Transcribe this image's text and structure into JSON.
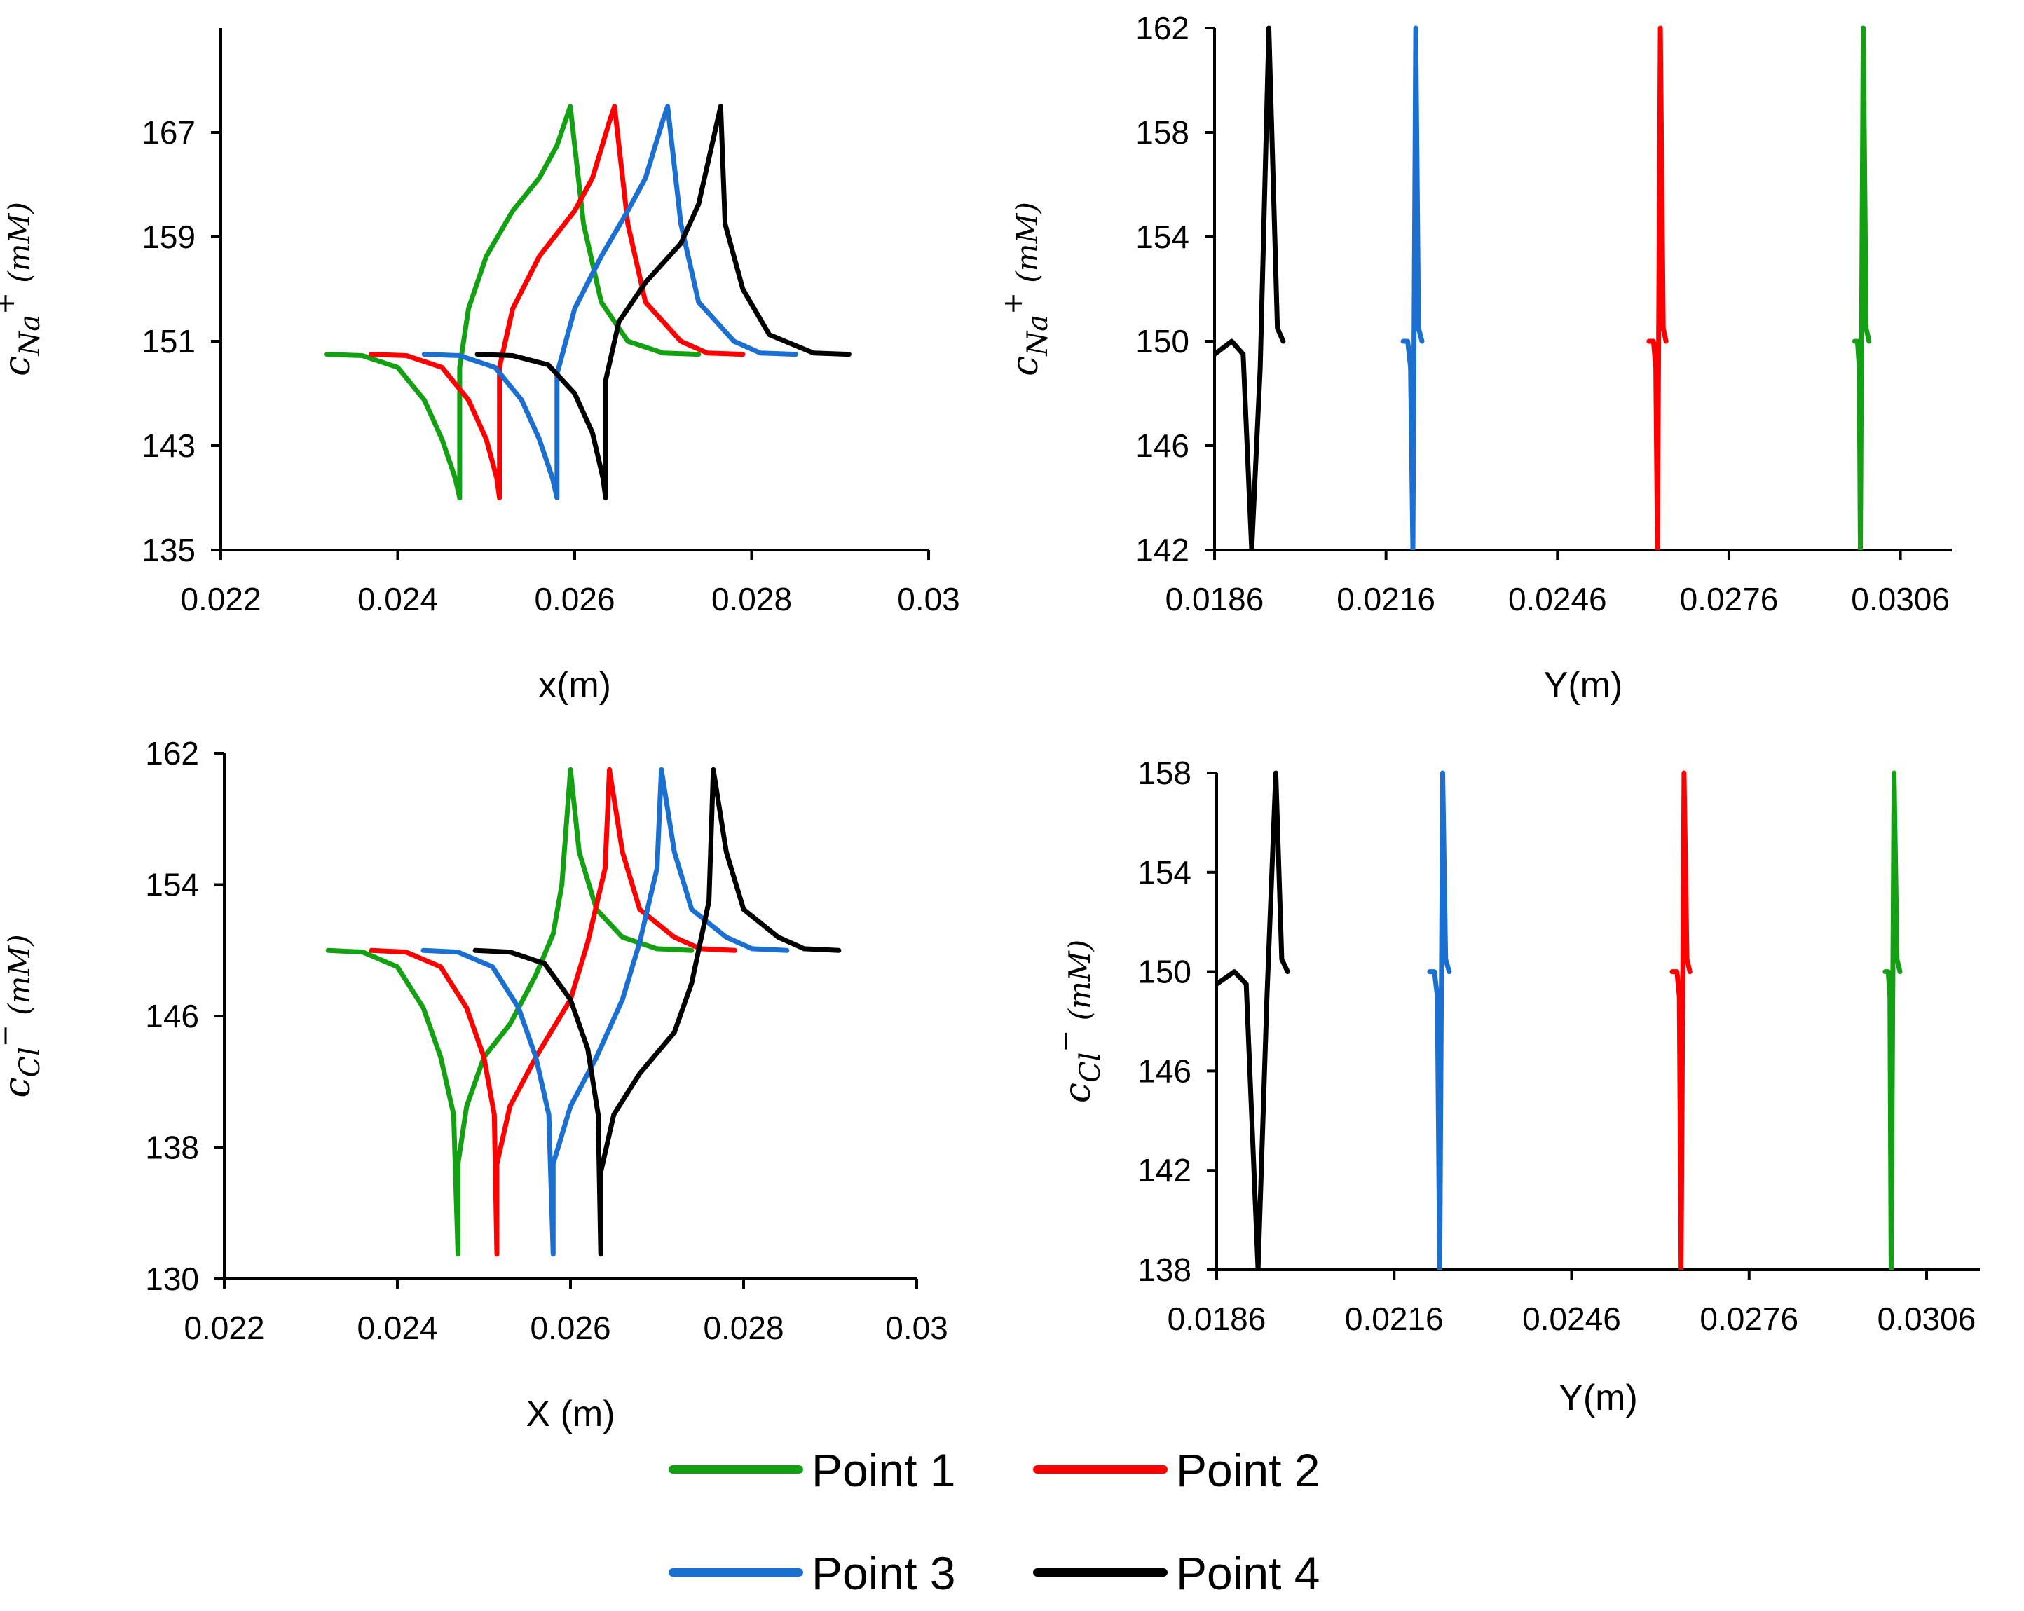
{
  "chart_data": [
    {
      "type": "line",
      "id": "a",
      "title": "",
      "xlabel": "x(m)",
      "ylabel_main": "c",
      "ylabel_sub": "Na",
      "ylabel_sup": "+",
      "ylabel_unit": " (mM)",
      "xlim": [
        0.022,
        0.03
      ],
      "ylim": [
        135,
        175
      ],
      "xticks": [
        0.022,
        0.024,
        0.026,
        0.028,
        0.03
      ],
      "xtick_labels": [
        "0.022",
        "0.024",
        "0.026",
        "0.028",
        "0.03"
      ],
      "yticks": [
        135,
        143,
        151,
        159,
        167
      ],
      "ytick_labels": [
        "135",
        "143",
        "151",
        "159",
        "167"
      ],
      "series": [
        {
          "name": "Point 1",
          "x": [
            0.0232,
            0.0236,
            0.024,
            0.0243,
            0.0245,
            0.02465,
            0.0247,
            0.0247,
            0.0248,
            0.025,
            0.0253,
            0.0256,
            0.0258,
            0.0259,
            0.02595,
            0.0261,
            0.0263,
            0.0266,
            0.027,
            0.0274
          ],
          "y": [
            150,
            149.9,
            149,
            146.5,
            143.5,
            140.5,
            139,
            149,
            153.5,
            157.5,
            161,
            163.5,
            166,
            168,
            169,
            160,
            154,
            151,
            150.1,
            150
          ]
        },
        {
          "name": "Point 2",
          "x": [
            0.0237,
            0.0241,
            0.0245,
            0.0248,
            0.025,
            0.02512,
            0.02515,
            0.02515,
            0.0253,
            0.0256,
            0.026,
            0.0262,
            0.0264,
            0.02645,
            0.0266,
            0.0268,
            0.0272,
            0.0275,
            0.0279
          ],
          "y": [
            150,
            149.9,
            149,
            146.5,
            143.5,
            140.5,
            139,
            149,
            153.5,
            157.5,
            161,
            163.5,
            168,
            169,
            160,
            154,
            151,
            150.1,
            150
          ]
        },
        {
          "name": "Point 3",
          "x": [
            0.0243,
            0.0247,
            0.0251,
            0.0254,
            0.0256,
            0.02575,
            0.0258,
            0.0258,
            0.026,
            0.0263,
            0.0266,
            0.0268,
            0.027,
            0.02705,
            0.0272,
            0.0274,
            0.0278,
            0.0281,
            0.0285
          ],
          "y": [
            150,
            149.9,
            149,
            146.5,
            143.5,
            140.5,
            139,
            148.5,
            153.5,
            157.5,
            161,
            163.5,
            168,
            169,
            160,
            154,
            151,
            150.1,
            150
          ]
        },
        {
          "name": "Point 4",
          "x": [
            0.0249,
            0.0253,
            0.0257,
            0.026,
            0.0262,
            0.02632,
            0.02635,
            0.02635,
            0.0265,
            0.0268,
            0.0272,
            0.0274,
            0.02755,
            0.02765,
            0.0277,
            0.0279,
            0.0282,
            0.0287,
            0.0291
          ],
          "y": [
            150,
            149.9,
            149.2,
            147,
            144,
            140.5,
            139,
            148,
            152.5,
            155.5,
            158.5,
            161.5,
            166,
            169,
            160,
            155,
            151.5,
            150.1,
            150
          ]
        }
      ]
    },
    {
      "type": "line",
      "id": "b",
      "title": "",
      "xlabel": "Y(m)",
      "ylabel_main": "c",
      "ylabel_sub": "Na",
      "ylabel_sup": "+",
      "ylabel_unit": " (mM)",
      "xlim": [
        0.0186,
        0.0315
      ],
      "ylim": [
        142,
        162
      ],
      "xticks": [
        0.0186,
        0.0216,
        0.0246,
        0.0276,
        0.0306
      ],
      "xtick_labels": [
        "0.0186",
        "0.0216",
        "0.0246",
        "0.0276",
        "0.0306"
      ],
      "yticks": [
        142,
        146,
        150,
        154,
        158,
        162
      ],
      "ytick_labels": [
        "142",
        "146",
        "150",
        "154",
        "158",
        "162"
      ],
      "series": [
        {
          "name": "Point 1",
          "x": [
            0.0298,
            0.02985,
            0.02988,
            0.0299,
            0.02995,
            0.03,
            0.03005
          ],
          "y": [
            150,
            150,
            149,
            142,
            162,
            150.5,
            150
          ]
        },
        {
          "name": "Point 2",
          "x": [
            0.0262,
            0.02628,
            0.02632,
            0.02635,
            0.0264,
            0.02645,
            0.0265
          ],
          "y": [
            150,
            150,
            149,
            142,
            162,
            150.5,
            150
          ]
        },
        {
          "name": "Point 3",
          "x": [
            0.0219,
            0.02198,
            0.02203,
            0.02207,
            0.02212,
            0.02217,
            0.02223
          ],
          "y": [
            150,
            150,
            149,
            142,
            162,
            150.5,
            150
          ]
        },
        {
          "name": "Point 4",
          "x": [
            0.0186,
            0.0189,
            0.0191,
            0.01925,
            0.0194,
            0.01955,
            0.0197,
            0.0198
          ],
          "y": [
            149.5,
            150,
            149.5,
            142,
            149,
            162,
            150.5,
            150
          ]
        }
      ]
    },
    {
      "type": "line",
      "id": "c",
      "title": "",
      "xlabel": "X (m)",
      "ylabel_main": "c",
      "ylabel_sub": "Cl",
      "ylabel_sup": "−",
      "ylabel_unit": " (mM)",
      "xlim": [
        0.022,
        0.03
      ],
      "ylim": [
        130,
        162
      ],
      "xticks": [
        0.022,
        0.024,
        0.026,
        0.028,
        0.03
      ],
      "xtick_labels": [
        "0.022",
        "0.024",
        "0.026",
        "0.028",
        "0.03"
      ],
      "yticks": [
        130,
        138,
        146,
        154,
        162
      ],
      "ytick_labels": [
        "130",
        "138",
        "146",
        "154",
        "162"
      ],
      "series": [
        {
          "name": "Point 1",
          "x": [
            0.0232,
            0.0236,
            0.024,
            0.0243,
            0.0245,
            0.02465,
            0.0247,
            0.0247,
            0.0248,
            0.025,
            0.0253,
            0.0256,
            0.0258,
            0.0259,
            0.026,
            0.0261,
            0.0263,
            0.0266,
            0.027,
            0.0274
          ],
          "y": [
            150,
            149.9,
            149,
            146.5,
            143.5,
            140,
            131.5,
            137,
            140.5,
            143.5,
            145.5,
            148.5,
            151,
            154,
            161,
            156,
            152.5,
            150.8,
            150.1,
            150
          ]
        },
        {
          "name": "Point 2",
          "x": [
            0.0237,
            0.0241,
            0.0245,
            0.0248,
            0.025,
            0.02512,
            0.02515,
            0.02515,
            0.0253,
            0.0256,
            0.026,
            0.0262,
            0.0264,
            0.02645,
            0.0266,
            0.0268,
            0.0272,
            0.0275,
            0.0279
          ],
          "y": [
            150,
            149.9,
            149,
            146.5,
            143.5,
            140,
            131.5,
            137,
            140.5,
            143.5,
            147,
            150.5,
            155,
            161,
            156,
            152.5,
            150.8,
            150.1,
            150
          ]
        },
        {
          "name": "Point 3",
          "x": [
            0.0243,
            0.0247,
            0.0251,
            0.0254,
            0.0256,
            0.02575,
            0.0258,
            0.0258,
            0.026,
            0.0263,
            0.0266,
            0.0268,
            0.027,
            0.02705,
            0.0272,
            0.0274,
            0.0278,
            0.0281,
            0.0285
          ],
          "y": [
            150,
            149.9,
            149,
            146.5,
            143.5,
            140,
            131.5,
            137,
            140.5,
            143.5,
            147,
            150.5,
            155,
            161,
            156,
            152.5,
            150.8,
            150.1,
            150
          ]
        },
        {
          "name": "Point 4",
          "x": [
            0.0249,
            0.0253,
            0.0257,
            0.026,
            0.0262,
            0.02632,
            0.02635,
            0.02635,
            0.0265,
            0.0268,
            0.0272,
            0.0274,
            0.0276,
            0.02765,
            0.0278,
            0.028,
            0.0284,
            0.0287,
            0.0291
          ],
          "y": [
            150,
            149.9,
            149.2,
            147,
            144,
            140,
            131.5,
            136.5,
            140,
            142.5,
            145,
            148,
            153,
            161,
            156,
            152.5,
            150.8,
            150.1,
            150
          ]
        }
      ]
    },
    {
      "type": "line",
      "id": "d",
      "title": "",
      "xlabel": "Y(m)",
      "ylabel_main": "c",
      "ylabel_sub": "Cl",
      "ylabel_sup": "−",
      "ylabel_unit": " (mM)",
      "xlim": [
        0.0186,
        0.0315
      ],
      "ylim": [
        138,
        158
      ],
      "xticks": [
        0.0186,
        0.0216,
        0.0246,
        0.0276,
        0.0306
      ],
      "xtick_labels": [
        "0.0186",
        "0.0216",
        "0.0246",
        "0.0276",
        "0.0306"
      ],
      "yticks": [
        138,
        142,
        146,
        150,
        154,
        158
      ],
      "ytick_labels": [
        "138",
        "142",
        "146",
        "150",
        "154",
        "158"
      ],
      "series": [
        {
          "name": "Point 1",
          "x": [
            0.0299,
            0.02995,
            0.02998,
            0.03,
            0.03005,
            0.0301,
            0.03015
          ],
          "y": [
            150,
            150,
            149,
            138,
            158,
            150.5,
            150
          ]
        },
        {
          "name": "Point 2",
          "x": [
            0.0263,
            0.02638,
            0.02642,
            0.02645,
            0.0265,
            0.02655,
            0.0266
          ],
          "y": [
            150,
            150,
            149,
            138,
            158,
            150.5,
            150
          ]
        },
        {
          "name": "Point 3",
          "x": [
            0.0222,
            0.02228,
            0.02233,
            0.02237,
            0.02242,
            0.02247,
            0.02253
          ],
          "y": [
            150,
            150,
            149,
            138,
            158,
            150.5,
            150
          ]
        },
        {
          "name": "Point 4",
          "x": [
            0.0186,
            0.0189,
            0.0191,
            0.0193,
            0.01945,
            0.0196,
            0.0197,
            0.0198
          ],
          "y": [
            149.5,
            150,
            149.5,
            138,
            149,
            158,
            150.5,
            150
          ]
        }
      ]
    }
  ],
  "legend": [
    {
      "name": "Point 1",
      "color": "#13A113"
    },
    {
      "name": "Point 2",
      "color": "#FF0000"
    },
    {
      "name": "Point 3",
      "color": "#1A6FD0"
    },
    {
      "name": "Point 4",
      "color": "#000000"
    }
  ]
}
